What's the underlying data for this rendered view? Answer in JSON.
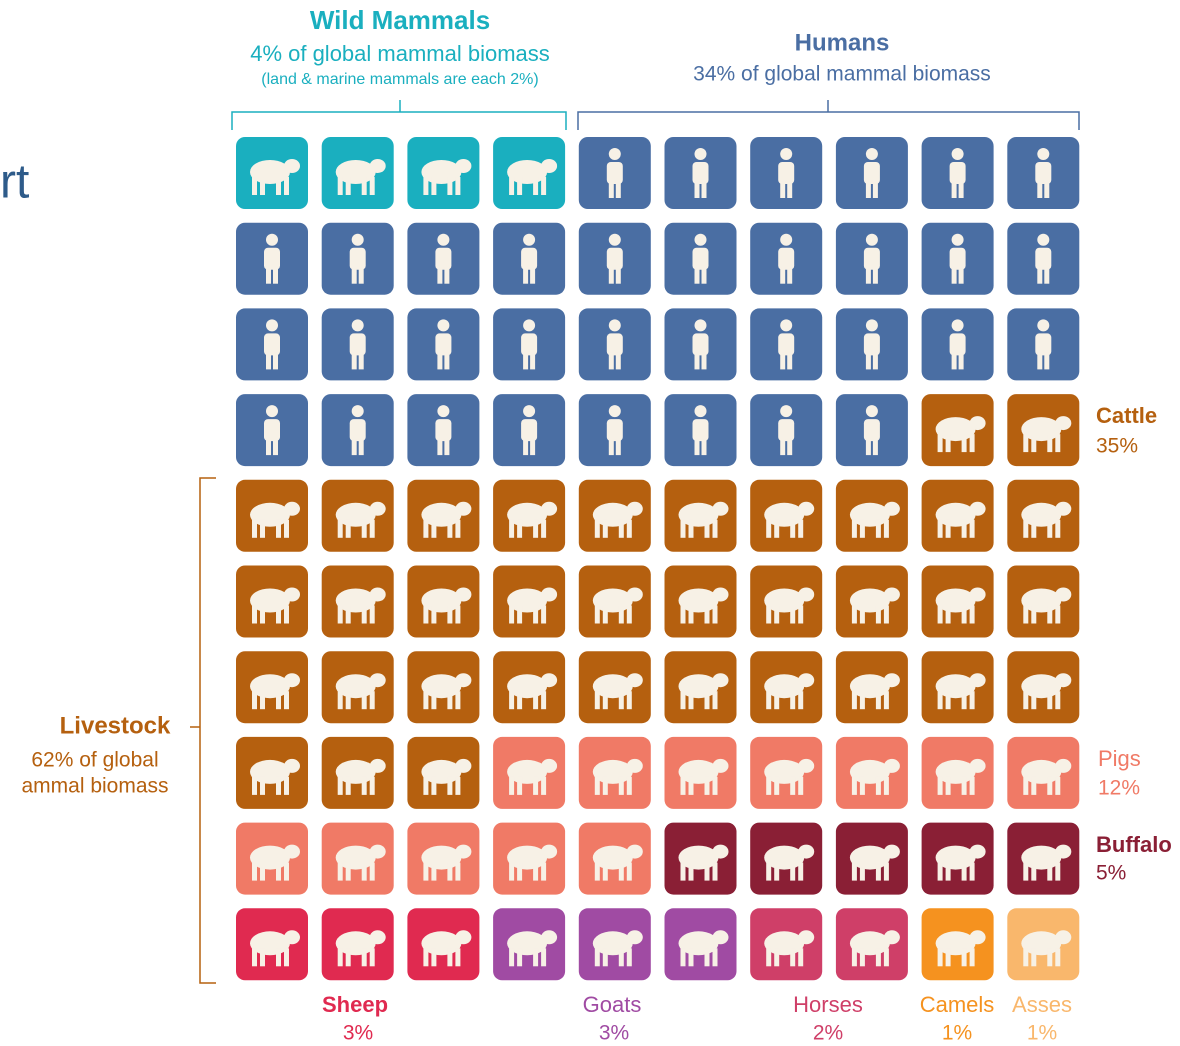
{
  "chart_data": {
    "type": "waffle",
    "cropped_title": "rt",
    "series": [
      {
        "name": "Wild Mammals",
        "color": "#1aafbf",
        "values": [
          4
        ],
        "subtitle": "4% of global mammal biomass",
        "note": "(land & marine mammals are each 2%)"
      },
      {
        "name": "Humans",
        "color": "#4a6ea3",
        "values": [
          34
        ],
        "subtitle": "34% of global mammal biomass"
      },
      {
        "name": "Cattle",
        "color": "#b5600f",
        "values": [
          35
        ],
        "value_labels": [
          "35%"
        ]
      },
      {
        "name": "Pigs",
        "color": "#f07a66",
        "values": [
          12
        ],
        "value_labels": [
          "12%"
        ]
      },
      {
        "name": "Buffalo",
        "color": "#8a1f35",
        "values": [
          5
        ],
        "value_labels": [
          "5%"
        ]
      },
      {
        "name": "Sheep",
        "color": "#e02a50",
        "values": [
          3
        ],
        "value_labels": [
          "3%"
        ]
      },
      {
        "name": "Goats",
        "color": "#a04ba3",
        "values": [
          3
        ],
        "value_labels": [
          "3%"
        ]
      },
      {
        "name": "Horses",
        "color": "#cf3f68",
        "values": [
          2
        ],
        "value_labels": [
          "2%"
        ]
      },
      {
        "name": "Camels",
        "color": "#f5921f",
        "values": [
          1
        ],
        "value_labels": [
          "1%"
        ]
      },
      {
        "name": "Asses",
        "color": "#f9b76c",
        "values": [
          1
        ],
        "value_labels": [
          "1%"
        ]
      }
    ],
    "livestock": {
      "title": "Livestock",
      "lines": [
        "62% of global",
        "ammal biomass"
      ]
    }
  }
}
